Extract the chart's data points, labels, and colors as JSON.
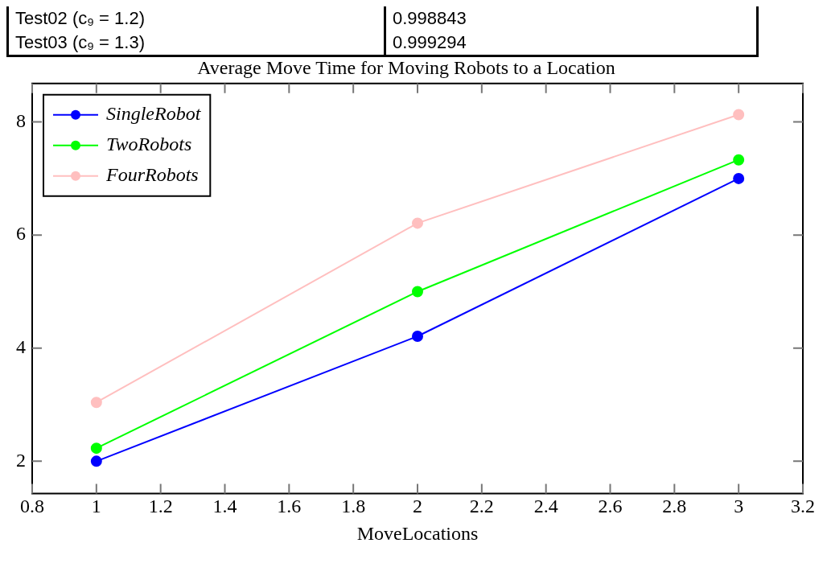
{
  "chart_data": {
    "type": "line",
    "title": "Average Move Time for Moving Robots to a Location",
    "xlabel": "MoveLocations",
    "annotations": [
      "Test02 (c₉ = 1.2)",
      "0.998843",
      "Test03 (c₉ = 1.3)",
      "0.999294"
    ],
    "x": [
      1,
      2,
      3
    ],
    "series": [
      {
        "name": "SingleRobot",
        "color": "#0000ff",
        "values": [
          2.0,
          4.21,
          7.0
        ]
      },
      {
        "name": "TwoRobots",
        "color": "#00ff00",
        "values": [
          2.23,
          5.0,
          7.33
        ]
      },
      {
        "name": "FourRobots",
        "color": "#ffbfbf",
        "values": [
          3.04,
          6.21,
          8.13
        ]
      }
    ],
    "xlim": [
      0.8,
      3.2
    ],
    "xticks": [
      0.8,
      1,
      1.2,
      1.4,
      1.6,
      1.8,
      2,
      2.2,
      2.4,
      2.6,
      2.8,
      3,
      3.2
    ],
    "ylim": [
      1.43,
      8.68
    ],
    "yticks": [
      2,
      4,
      6,
      8
    ],
    "grid": false,
    "legend": "top left",
    "marker": "circle",
    "line_style": "solid"
  }
}
